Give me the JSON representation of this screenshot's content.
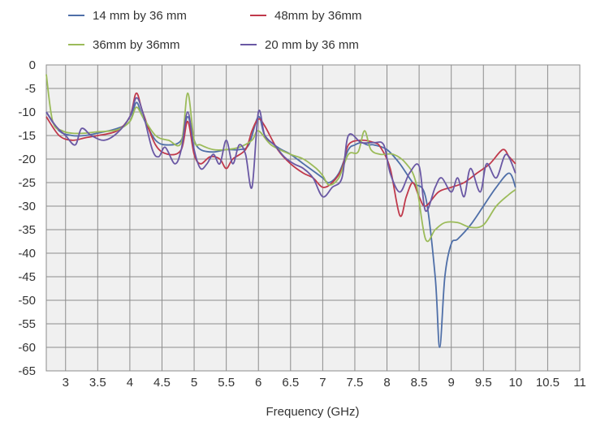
{
  "chart_data": {
    "type": "line",
    "title": "",
    "xlabel": "Frequency  (GHz)",
    "ylabel": "",
    "xlim": [
      2.7,
      11
    ],
    "ylim": [
      -65,
      0
    ],
    "x_ticks": [
      3,
      3.5,
      4,
      4.5,
      5,
      5.5,
      6,
      6.5,
      7,
      7.5,
      8,
      8.5,
      9,
      9.5,
      10,
      10.5,
      11
    ],
    "x_tick_labels": [
      "3",
      "3.5",
      "4",
      "4.5",
      "5",
      "5.5",
      "6",
      "6.5",
      "7",
      "7.5",
      "8",
      "8.5",
      "9",
      "9.5",
      "10",
      "10.5",
      "11"
    ],
    "y_ticks": [
      0,
      -5,
      -10,
      -15,
      -20,
      -25,
      -30,
      -35,
      -40,
      -45,
      -50,
      -55,
      -60,
      -65
    ],
    "y_tick_labels": [
      "0",
      "-5",
      "-10",
      "-15",
      "-20",
      "-25",
      "-30",
      "-35",
      "-40",
      "-45",
      "-50",
      "-55",
      "-60",
      "-65"
    ],
    "grid": true,
    "legend_position": "top",
    "series": [
      {
        "name": "14 mm by 36  mm",
        "color": "#4f6fa8",
        "points": [
          [
            2.7,
            -10
          ],
          [
            2.9,
            -14
          ],
          [
            3.1,
            -15
          ],
          [
            3.3,
            -15
          ],
          [
            3.5,
            -14.5
          ],
          [
            3.8,
            -13.5
          ],
          [
            4.0,
            -12
          ],
          [
            4.1,
            -8
          ],
          [
            4.2,
            -11
          ],
          [
            4.4,
            -16
          ],
          [
            4.6,
            -17
          ],
          [
            4.8,
            -16
          ],
          [
            4.9,
            -11
          ],
          [
            5.0,
            -16
          ],
          [
            5.1,
            -18
          ],
          [
            5.3,
            -18.5
          ],
          [
            5.5,
            -18
          ],
          [
            5.7,
            -18
          ],
          [
            5.85,
            -17
          ],
          [
            6.0,
            -11
          ],
          [
            6.1,
            -15
          ],
          [
            6.3,
            -17.5
          ],
          [
            6.5,
            -19
          ],
          [
            6.7,
            -21
          ],
          [
            6.9,
            -23
          ],
          [
            7.0,
            -24
          ],
          [
            7.1,
            -25
          ],
          [
            7.25,
            -23
          ],
          [
            7.4,
            -18
          ],
          [
            7.5,
            -17
          ],
          [
            7.6,
            -16.5
          ],
          [
            7.7,
            -17
          ],
          [
            7.8,
            -17
          ],
          [
            8.0,
            -18
          ],
          [
            8.2,
            -21
          ],
          [
            8.4,
            -25
          ],
          [
            8.6,
            -28
          ],
          [
            8.75,
            -45
          ],
          [
            8.82,
            -60
          ],
          [
            8.9,
            -45
          ],
          [
            9.0,
            -38
          ],
          [
            9.1,
            -37
          ],
          [
            9.3,
            -34
          ],
          [
            9.5,
            -30
          ],
          [
            9.7,
            -26
          ],
          [
            9.9,
            -23
          ],
          [
            10.0,
            -26
          ]
        ]
      },
      {
        "name": "48mm  by  36mm",
        "color": "#c0394b",
        "points": [
          [
            2.7,
            -11
          ],
          [
            2.9,
            -15
          ],
          [
            3.1,
            -16
          ],
          [
            3.3,
            -15.5
          ],
          [
            3.5,
            -15
          ],
          [
            3.8,
            -14
          ],
          [
            4.0,
            -11
          ],
          [
            4.1,
            -6
          ],
          [
            4.2,
            -10
          ],
          [
            4.4,
            -17
          ],
          [
            4.6,
            -19
          ],
          [
            4.8,
            -18
          ],
          [
            4.9,
            -12
          ],
          [
            5.0,
            -19
          ],
          [
            5.1,
            -21
          ],
          [
            5.25,
            -19.5
          ],
          [
            5.4,
            -20
          ],
          [
            5.5,
            -22
          ],
          [
            5.6,
            -20
          ],
          [
            5.8,
            -18
          ],
          [
            5.9,
            -14
          ],
          [
            6.0,
            -11.5
          ],
          [
            6.1,
            -13
          ],
          [
            6.3,
            -18
          ],
          [
            6.5,
            -21
          ],
          [
            6.7,
            -23
          ],
          [
            6.85,
            -24
          ],
          [
            7.0,
            -26
          ],
          [
            7.15,
            -25
          ],
          [
            7.3,
            -22
          ],
          [
            7.4,
            -17
          ],
          [
            7.6,
            -16
          ],
          [
            7.8,
            -16.5
          ],
          [
            7.9,
            -17.5
          ],
          [
            8.05,
            -22
          ],
          [
            8.2,
            -32
          ],
          [
            8.3,
            -28
          ],
          [
            8.4,
            -25
          ],
          [
            8.5,
            -28
          ],
          [
            8.6,
            -30
          ],
          [
            8.8,
            -27
          ],
          [
            9.0,
            -26
          ],
          [
            9.2,
            -25
          ],
          [
            9.4,
            -23
          ],
          [
            9.6,
            -21
          ],
          [
            9.8,
            -18
          ],
          [
            9.9,
            -19.5
          ],
          [
            10.0,
            -21
          ]
        ]
      },
      {
        "name": "36mm  by  36mm",
        "color": "#9bbb59",
        "points": [
          [
            2.7,
            -2
          ],
          [
            2.8,
            -12
          ],
          [
            2.95,
            -14
          ],
          [
            3.1,
            -14.5
          ],
          [
            3.3,
            -14.5
          ],
          [
            3.5,
            -14.2
          ],
          [
            3.8,
            -13.8
          ],
          [
            4.0,
            -12
          ],
          [
            4.1,
            -9
          ],
          [
            4.2,
            -11
          ],
          [
            4.4,
            -15
          ],
          [
            4.6,
            -16
          ],
          [
            4.8,
            -16.5
          ],
          [
            4.9,
            -6
          ],
          [
            5.0,
            -16
          ],
          [
            5.1,
            -17
          ],
          [
            5.3,
            -18
          ],
          [
            5.5,
            -18
          ],
          [
            5.7,
            -17.5
          ],
          [
            5.9,
            -16
          ],
          [
            6.0,
            -14
          ],
          [
            6.2,
            -17
          ],
          [
            6.5,
            -19
          ],
          [
            6.7,
            -20
          ],
          [
            6.9,
            -22
          ],
          [
            7.0,
            -23.5
          ],
          [
            7.1,
            -25.5
          ],
          [
            7.25,
            -24
          ],
          [
            7.4,
            -19
          ],
          [
            7.55,
            -18.5
          ],
          [
            7.65,
            -14
          ],
          [
            7.75,
            -18
          ],
          [
            7.9,
            -19
          ],
          [
            8.1,
            -19
          ],
          [
            8.3,
            -21
          ],
          [
            8.45,
            -25
          ],
          [
            8.6,
            -37
          ],
          [
            8.75,
            -35
          ],
          [
            8.9,
            -33.5
          ],
          [
            9.1,
            -33.5
          ],
          [
            9.3,
            -34.5
          ],
          [
            9.5,
            -34
          ],
          [
            9.7,
            -30
          ],
          [
            9.9,
            -27.5
          ],
          [
            10.0,
            -26.5
          ]
        ]
      },
      {
        "name": "20  mm  by  36  mm",
        "color": "#6a58a4",
        "points": [
          [
            2.7,
            -10
          ],
          [
            2.85,
            -13
          ],
          [
            3.0,
            -15
          ],
          [
            3.15,
            -17
          ],
          [
            3.25,
            -13.5
          ],
          [
            3.4,
            -15
          ],
          [
            3.6,
            -16
          ],
          [
            3.8,
            -14.5
          ],
          [
            4.0,
            -11
          ],
          [
            4.1,
            -7
          ],
          [
            4.2,
            -10
          ],
          [
            4.35,
            -18
          ],
          [
            4.45,
            -19.5
          ],
          [
            4.55,
            -17.5
          ],
          [
            4.7,
            -21
          ],
          [
            4.8,
            -18
          ],
          [
            4.9,
            -10
          ],
          [
            5.0,
            -18
          ],
          [
            5.1,
            -22
          ],
          [
            5.2,
            -21
          ],
          [
            5.3,
            -19
          ],
          [
            5.4,
            -21
          ],
          [
            5.5,
            -16
          ],
          [
            5.6,
            -21
          ],
          [
            5.7,
            -17
          ],
          [
            5.8,
            -19
          ],
          [
            5.9,
            -26
          ],
          [
            6.0,
            -10
          ],
          [
            6.1,
            -15
          ],
          [
            6.25,
            -17
          ],
          [
            6.4,
            -19.5
          ],
          [
            6.55,
            -21
          ],
          [
            6.7,
            -22
          ],
          [
            6.85,
            -24
          ],
          [
            7.0,
            -28
          ],
          [
            7.15,
            -26
          ],
          [
            7.3,
            -24
          ],
          [
            7.4,
            -15
          ],
          [
            7.6,
            -16.5
          ],
          [
            7.8,
            -16.5
          ],
          [
            7.95,
            -17
          ],
          [
            8.05,
            -23
          ],
          [
            8.2,
            -27
          ],
          [
            8.35,
            -23
          ],
          [
            8.5,
            -21.5
          ],
          [
            8.6,
            -31
          ],
          [
            8.75,
            -26
          ],
          [
            8.85,
            -24
          ],
          [
            9.0,
            -27
          ],
          [
            9.1,
            -24
          ],
          [
            9.2,
            -28
          ],
          [
            9.3,
            -22
          ],
          [
            9.45,
            -27
          ],
          [
            9.55,
            -21
          ],
          [
            9.7,
            -24
          ],
          [
            9.85,
            -19
          ],
          [
            10.0,
            -23
          ]
        ]
      }
    ]
  }
}
